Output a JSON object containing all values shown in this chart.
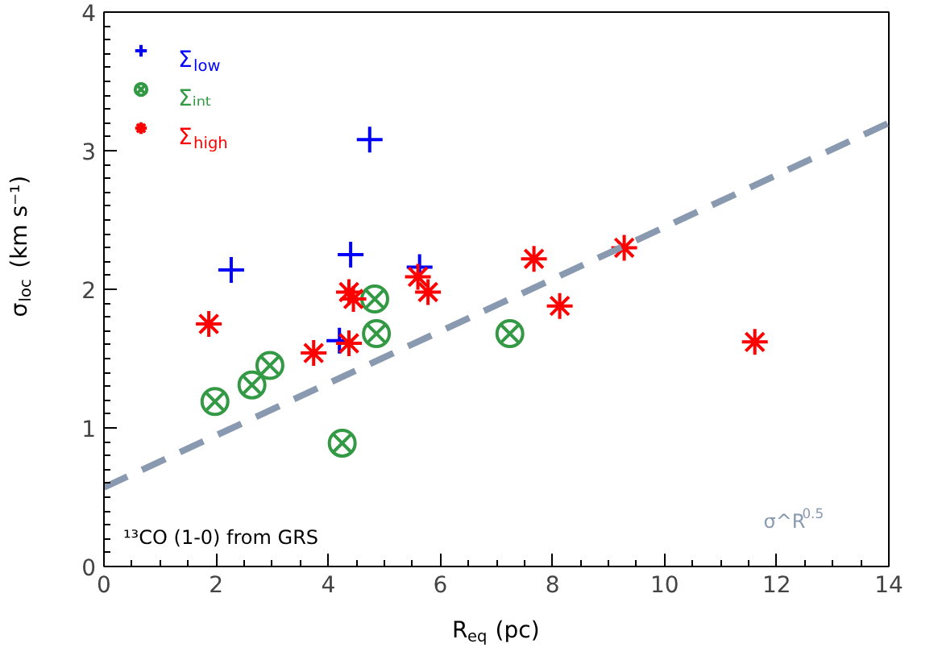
{
  "chart_data": {
    "type": "scatter",
    "xlabel": "R$_{eq}$ (pc)",
    "ylabel": "σ$_{loc}$ (km s⁻¹)",
    "xlim": [
      0,
      14
    ],
    "ylim": [
      0,
      4
    ],
    "xticks": [
      0,
      2,
      4,
      6,
      8,
      10,
      12,
      14
    ],
    "yticks": [
      0,
      1,
      2,
      3,
      4
    ],
    "grid": false,
    "legend": "top left",
    "annotations": [
      "¹³CO (1-0) from GRS"
    ],
    "series": [
      {
        "name": "Σ$_{low}$",
        "color": "#0000ff",
        "marker": "cross",
        "x": [
          2.27,
          4.4,
          4.74,
          5.63,
          4.2
        ],
        "values": [
          2.14,
          2.25,
          3.08,
          2.16,
          1.63
        ]
      },
      {
        "name": "Σᵢₙₜ",
        "color": "#339944",
        "x": [
          1.98,
          2.64,
          2.96,
          4.83,
          4.86,
          7.24,
          4.25
        ],
        "values": [
          1.19,
          1.31,
          1.45,
          1.93,
          1.68,
          1.68,
          0.89
        ]
      },
      {
        "name": "Σ$_{high}$",
        "color": "#ff0000",
        "x": [
          1.87,
          3.74,
          4.37,
          4.37,
          4.45,
          5.6,
          5.78,
          7.67,
          8.13,
          9.28,
          11.61
        ],
        "values": [
          1.75,
          1.54,
          1.61,
          1.98,
          1.93,
          2.09,
          1.98,
          2.22,
          1.88,
          2.3,
          1.62
        ]
      },
      {
        "name": "σ^R$^{0.5}$",
        "type": "line",
        "line_style": "dashed",
        "color": "#8899b0",
        "x": [
          0,
          14
        ],
        "values": [
          0.57,
          3.2
        ]
      }
    ]
  }
}
